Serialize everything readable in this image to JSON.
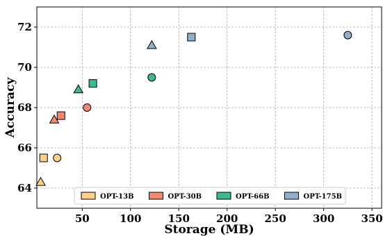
{
  "chart_data": {
    "type": "scatter",
    "xlabel": "Storage (MB)",
    "ylabel": "Accuracy",
    "xlim": [
      3,
      360
    ],
    "ylim": [
      63.0,
      73.0
    ],
    "xticks": [
      50,
      100,
      150,
      200,
      250,
      300,
      350
    ],
    "yticks": [
      64,
      66,
      68,
      70,
      72
    ],
    "grid": true,
    "legend_position": "bottom-center",
    "marker_legend": "square",
    "series": [
      {
        "name": "OPT-13B",
        "color": "#FDD089",
        "points": [
          {
            "x": 7,
            "y": 64.3,
            "marker": "triangle"
          },
          {
            "x": 10,
            "y": 65.5,
            "marker": "square"
          },
          {
            "x": 24,
            "y": 65.5,
            "marker": "circle"
          }
        ]
      },
      {
        "name": "OPT-30B",
        "color": "#F08A6E",
        "points": [
          {
            "x": 21,
            "y": 67.4,
            "marker": "triangle"
          },
          {
            "x": 28,
            "y": 67.6,
            "marker": "square"
          },
          {
            "x": 55,
            "y": 68.0,
            "marker": "circle"
          }
        ]
      },
      {
        "name": "OPT-66B",
        "color": "#3DB893",
        "points": [
          {
            "x": 46,
            "y": 68.9,
            "marker": "triangle"
          },
          {
            "x": 61,
            "y": 69.2,
            "marker": "square"
          },
          {
            "x": 122,
            "y": 69.5,
            "marker": "circle"
          }
        ]
      },
      {
        "name": "OPT-175B",
        "color": "#8FAFCB",
        "points": [
          {
            "x": 122,
            "y": 71.1,
            "marker": "triangle"
          },
          {
            "x": 163,
            "y": 71.5,
            "marker": "square"
          },
          {
            "x": 325,
            "y": 71.6,
            "marker": "circle"
          }
        ]
      }
    ]
  }
}
